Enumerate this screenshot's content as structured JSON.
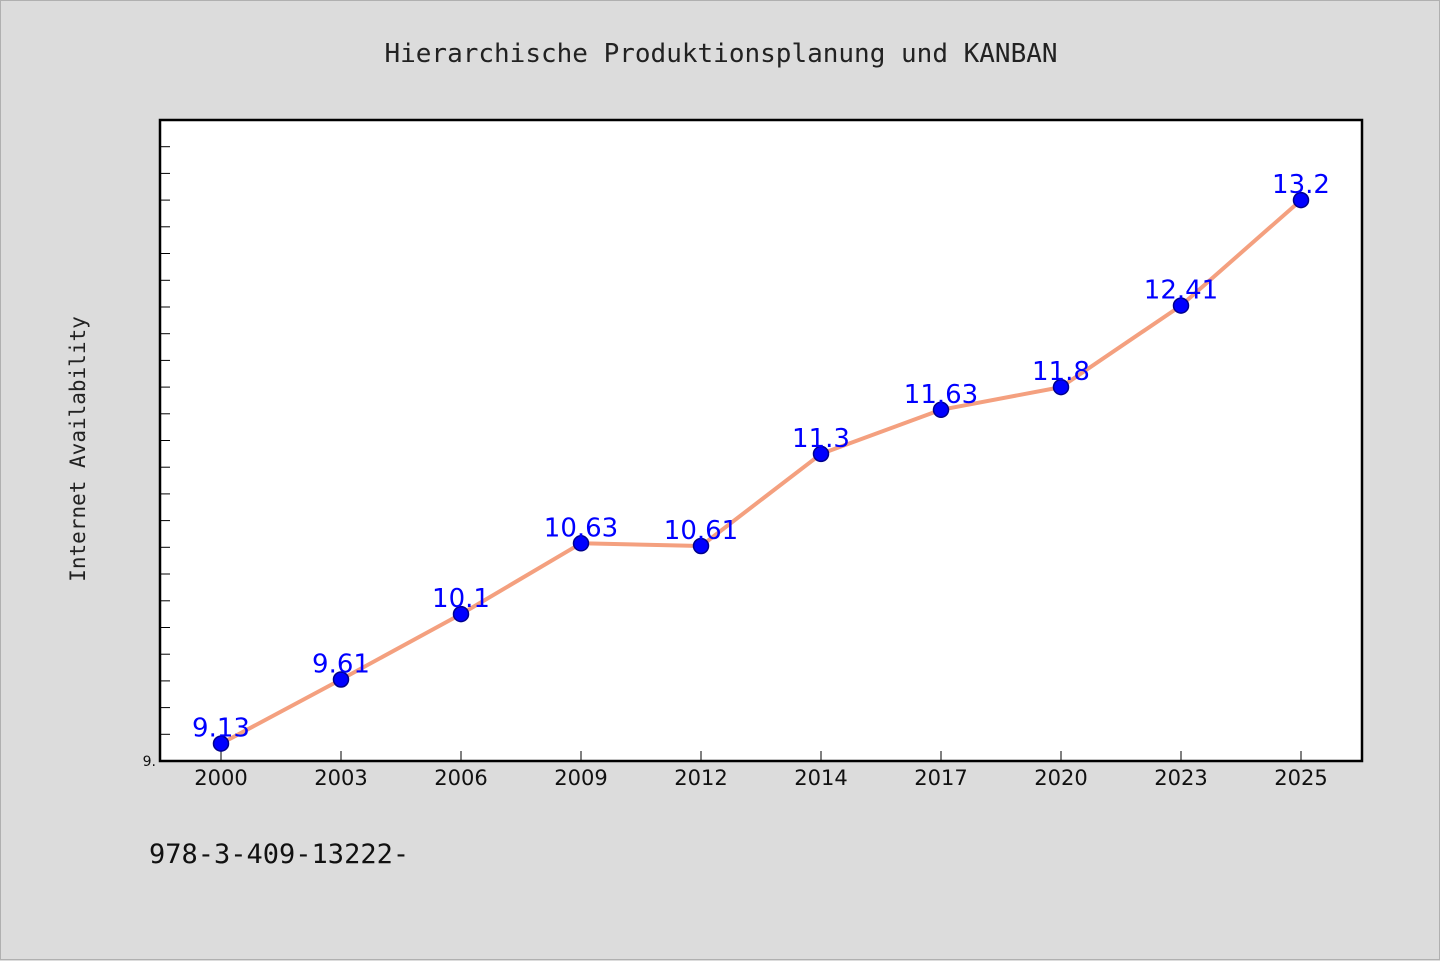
{
  "chart_data": {
    "type": "line",
    "title": "Hierarchische Produktionsplanung und KANBAN",
    "xlabel": "",
    "ylabel": "Internet Availability",
    "categories": [
      "2000",
      "2003",
      "2006",
      "2009",
      "2012",
      "2014",
      "2017",
      "2020",
      "2023",
      "2025"
    ],
    "series": [
      {
        "values": [
          9.13,
          9.61,
          10.1,
          10.63,
          10.61,
          11.3,
          11.63,
          11.8,
          12.41,
          13.2
        ],
        "labels": [
          "9.13",
          "9.61",
          "10.1",
          "10.63",
          "10.61",
          "11.3",
          "11.63",
          "11.8",
          "12.41",
          "13.2"
        ]
      }
    ],
    "ylim": [
      9.0,
      13.8
    ],
    "y_tick_labels": [
      "9."
    ],
    "grid": false,
    "legend": "none",
    "colors": {
      "line": "#f4a07f",
      "marker": "#0000ff",
      "marker_edge": "#00008b",
      "data_label": "#0000ff",
      "plot_bg": "#ffffff",
      "page_bg": "#dcdcdc"
    }
  },
  "footer_text": "978-3-409-13222-"
}
